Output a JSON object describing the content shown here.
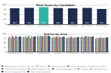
{
  "chart_data": [
    {
      "type": "bar",
      "title": "Total Score by Candidate",
      "categories": [
        "Bernardo Brandao",
        "CJ Millington",
        "Greenwood Cosie",
        "Irwin Madson",
        "Pablo Montague",
        "Robyn J. Bernado",
        "Whitmore Swamp"
      ],
      "values": [
        82.3,
        84.5,
        87.1,
        83.4,
        81.9,
        84.2,
        78.5
      ],
      "colors": [
        "#1e2d4f",
        "#1e2d4f",
        "#2cb5a0",
        "#1e2d4f",
        "#1e2d4f",
        "#1e2d4f",
        "#1e2d4f"
      ],
      "ylim": [
        0,
        100
      ],
      "yticks": [
        0,
        25,
        50,
        75,
        100
      ],
      "grid": true,
      "data_labels": true
    },
    {
      "type": "bar",
      "title": "Scores by area",
      "categories": [
        "Bernardo Brandao",
        "CJ Millington",
        "Greenwood Cosie",
        "Irwin Madson",
        "Pablo Montague",
        "Robyn J. Bernado",
        "Whitmore Swamp"
      ],
      "series": [
        {
          "name": "Area/Competency / Communication - Verba",
          "color": "#5b6fa8",
          "values": [
            80,
            82,
            88,
            78,
            75,
            82,
            72
          ]
        },
        {
          "name": "Cognitive",
          "color": "#e8a838",
          "values": [
            85,
            80,
            82,
            84,
            82,
            86,
            78
          ]
        },
        {
          "name": "Situational Judgment",
          "color": "#4db8b0",
          "values": [
            75,
            88,
            90,
            80,
            78,
            80,
            75
          ]
        },
        {
          "name": "Situational Competency / Communication - Written",
          "color": "#7b68b5",
          "values": [
            90,
            78,
            85,
            82,
            80,
            84,
            76
          ]
        },
        {
          "name": "Value of Total Work Experience",
          "color": "#c0504d",
          "values": [
            82,
            85,
            87,
            86,
            84,
            88,
            80
          ]
        },
        {
          "name": "Relevant Experience in Role",
          "color": "#9bbb59",
          "values": [
            78,
            90,
            84,
            78,
            76,
            82,
            74
          ]
        },
        {
          "name": "Functional Knowledge of Field",
          "color": "#8064a2",
          "values": [
            88,
            75,
            92,
            84,
            80,
            84,
            78
          ]
        },
        {
          "name": "Personality",
          "color": "#4bacc6",
          "values": [
            83,
            88,
            85,
            80,
            78,
            86,
            76
          ]
        },
        {
          "name": "Assessment of Skills",
          "color": "#f79646",
          "values": [
            79,
            82,
            90,
            82,
            80,
            82,
            78
          ]
        },
        {
          "name": "Technical Competency of Field",
          "color": "#1f497d",
          "values": [
            86,
            84,
            88,
            84,
            82,
            84,
            80
          ]
        },
        {
          "name": "Panel Final Recommendation",
          "color": "#243f5f",
          "values": [
            84,
            86,
            86,
            83,
            81,
            85,
            79
          ]
        }
      ],
      "ylim": [
        0,
        100
      ],
      "yticks": [
        0,
        25,
        50,
        75,
        100
      ],
      "grid": true,
      "legend": "lower left"
    }
  ]
}
